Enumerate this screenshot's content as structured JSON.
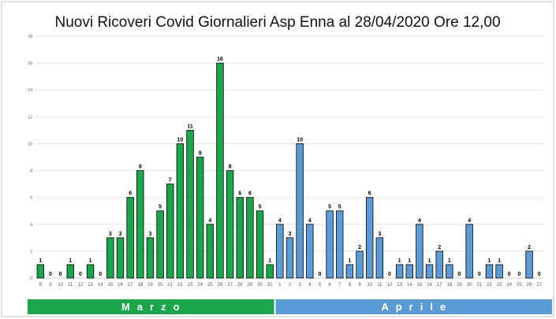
{
  "chart_data": {
    "type": "bar",
    "title": "Nuovi Ricoveri Covid Giornalieri Asp Enna al 28/04/2020 Ore 12,00",
    "ylim": [
      0,
      18
    ],
    "yticks": [
      0,
      2,
      4,
      6,
      8,
      10,
      12,
      14,
      16,
      18
    ],
    "grid": true,
    "groups": [
      {
        "label": "Marzo",
        "color": "#1aa64a",
        "categories": [
          "8",
          "9",
          "10",
          "11",
          "12",
          "13",
          "14",
          "15",
          "16",
          "17",
          "18",
          "19",
          "20",
          "21",
          "22",
          "23",
          "24",
          "25",
          "26",
          "27",
          "28",
          "29",
          "30",
          "31"
        ],
        "values": [
          1,
          0,
          0,
          1,
          0,
          1,
          0,
          3,
          3,
          6,
          8,
          3,
          5,
          7,
          10,
          11,
          9,
          4,
          16,
          8,
          6,
          6,
          5,
          1
        ]
      },
      {
        "label": "Aprile",
        "color": "#5b9bd5",
        "categories": [
          "1",
          "2",
          "3",
          "4",
          "5",
          "6",
          "7",
          "8",
          "9",
          "10",
          "11",
          "12",
          "13",
          "14",
          "15",
          "16",
          "17",
          "18",
          "19",
          "20",
          "21",
          "22",
          "23",
          "24",
          "25",
          "26",
          "27"
        ],
        "values": [
          4,
          3,
          10,
          4,
          0,
          5,
          5,
          1,
          2,
          6,
          3,
          0,
          1,
          1,
          4,
          1,
          2,
          1,
          0,
          4,
          0,
          1,
          1,
          0,
          0,
          2,
          0
        ]
      }
    ]
  }
}
